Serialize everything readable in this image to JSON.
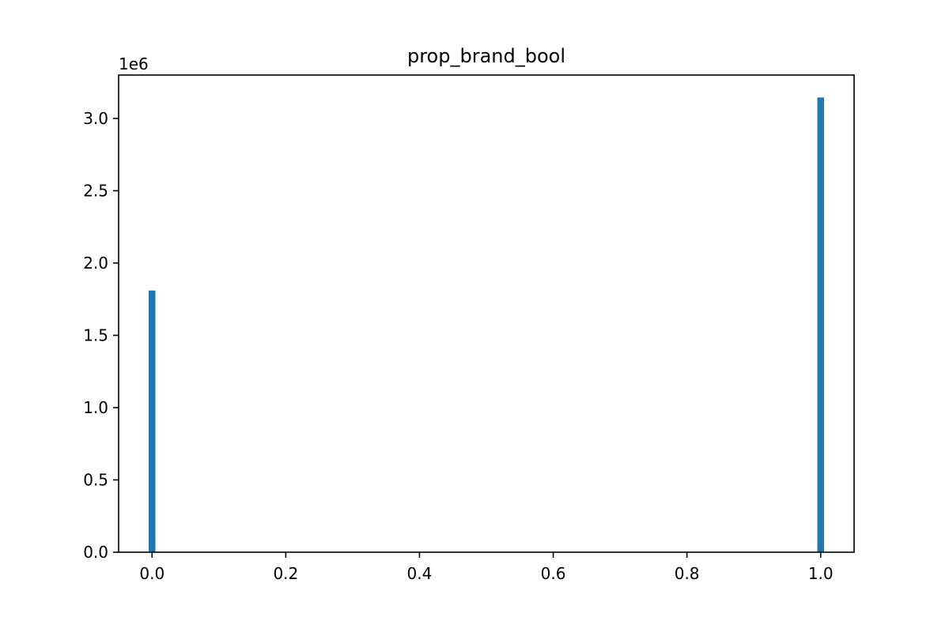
{
  "chart_data": {
    "type": "bar",
    "title": "prop_brand_bool",
    "xlabel": "",
    "ylabel": "",
    "y_offset_label": "1e6",
    "x_ticks": [
      "0.0",
      "0.2",
      "0.4",
      "0.6",
      "0.8",
      "1.0"
    ],
    "y_ticks": [
      "0.0",
      "0.5",
      "1.0",
      "1.5",
      "2.0",
      "2.5",
      "3.0"
    ],
    "xlim": [
      -0.05,
      1.05
    ],
    "ylim": [
      0,
      3300000
    ],
    "bars": [
      {
        "x": 0.0,
        "value": 1810000
      },
      {
        "x": 1.0,
        "value": 3145000
      }
    ],
    "bar_color": "#1f77b4",
    "grid": false,
    "legend": "none"
  }
}
